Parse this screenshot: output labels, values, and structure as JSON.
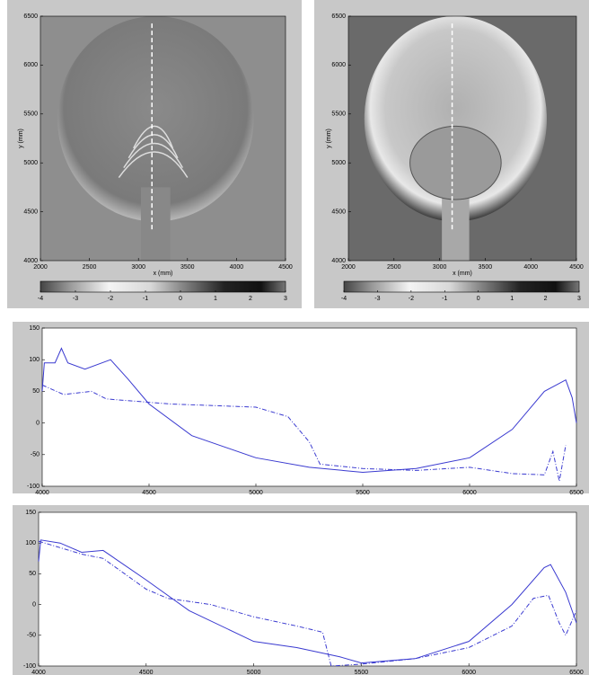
{
  "chart_data": [
    {
      "type": "image",
      "xlabel": "x (mm)",
      "ylabel": "y (mm)",
      "xlim": [
        2000,
        4500
      ],
      "ylim": [
        4000,
        6500
      ],
      "xticks": [
        2000,
        2500,
        3000,
        3500,
        4000,
        4500
      ],
      "yticks": [
        4000,
        4500,
        5000,
        5500,
        6000,
        6500
      ],
      "colorbar_lim": [
        -4,
        3
      ],
      "colorbar_ticks": [
        -4,
        -3,
        -2,
        -1,
        0,
        1,
        2,
        3
      ],
      "tone": "light"
    },
    {
      "type": "image",
      "xlabel": "x (mm)",
      "ylabel": "y (mm)",
      "xlim": [
        2000,
        4500
      ],
      "ylim": [
        4000,
        6500
      ],
      "xticks": [
        2000,
        2500,
        3000,
        3500,
        4000,
        4500
      ],
      "yticks": [
        4000,
        4500,
        5000,
        5500,
        6000,
        6500
      ],
      "colorbar_lim": [
        -4,
        3
      ],
      "colorbar_ticks": [
        -4,
        -3,
        -2,
        -1,
        0,
        1,
        2,
        3
      ],
      "tone": "dark"
    },
    {
      "type": "line",
      "xlim": [
        4000,
        6500
      ],
      "ylim": [
        -100,
        150
      ],
      "xticks": [
        4000,
        4500,
        5000,
        5500,
        6000,
        6500
      ],
      "yticks": [
        -100,
        -50,
        0,
        50,
        100,
        150
      ],
      "series": [
        {
          "color": "#3a3ad0",
          "style": "solid",
          "x": [
            4000,
            4010,
            4060,
            4090,
            4120,
            4200,
            4320,
            4400,
            4500,
            4700,
            5000,
            5250,
            5500,
            5750,
            6000,
            6200,
            6350,
            6450,
            6480,
            6500
          ],
          "values": [
            50,
            95,
            95,
            118,
            95,
            85,
            100,
            70,
            30,
            -20,
            -55,
            -70,
            -78,
            -72,
            -55,
            -10,
            50,
            68,
            40,
            0
          ]
        },
        {
          "color": "#3a3ad0",
          "style": "dashdot",
          "x": [
            4000,
            4100,
            4230,
            4300,
            4600,
            5000,
            5150,
            5250,
            5300,
            5500,
            5750,
            6000,
            6200,
            6350,
            6390,
            6420,
            6450
          ],
          "values": [
            60,
            45,
            50,
            38,
            30,
            25,
            10,
            -30,
            -65,
            -72,
            -75,
            -70,
            -80,
            -82,
            -45,
            -92,
            -35
          ]
        }
      ]
    },
    {
      "type": "line",
      "xlim": [
        4000,
        6500
      ],
      "ylim": [
        -100,
        150
      ],
      "xticks": [
        4000,
        4500,
        5000,
        5500,
        6000,
        6500
      ],
      "yticks": [
        -100,
        -50,
        0,
        50,
        100,
        150
      ],
      "series": [
        {
          "color": "#3a3ad0",
          "style": "solid",
          "x": [
            4000,
            4010,
            4100,
            4200,
            4300,
            4500,
            4700,
            5000,
            5200,
            5400,
            5500,
            5750,
            6000,
            6200,
            6350,
            6380,
            6450,
            6500
          ],
          "values": [
            70,
            105,
            100,
            85,
            88,
            40,
            -10,
            -60,
            -70,
            -85,
            -95,
            -88,
            -60,
            0,
            60,
            65,
            20,
            -30
          ]
        },
        {
          "color": "#3a3ad0",
          "style": "dashdot",
          "x": [
            4000,
            4200,
            4300,
            4500,
            4600,
            4800,
            5000,
            5200,
            5320,
            5360,
            5500,
            5750,
            6000,
            6200,
            6300,
            6370,
            6420,
            6450,
            6500
          ],
          "values": [
            103,
            82,
            75,
            25,
            10,
            0,
            -20,
            -35,
            -45,
            -100,
            -97,
            -88,
            -70,
            -35,
            10,
            15,
            -30,
            -50,
            -10
          ]
        }
      ]
    }
  ]
}
